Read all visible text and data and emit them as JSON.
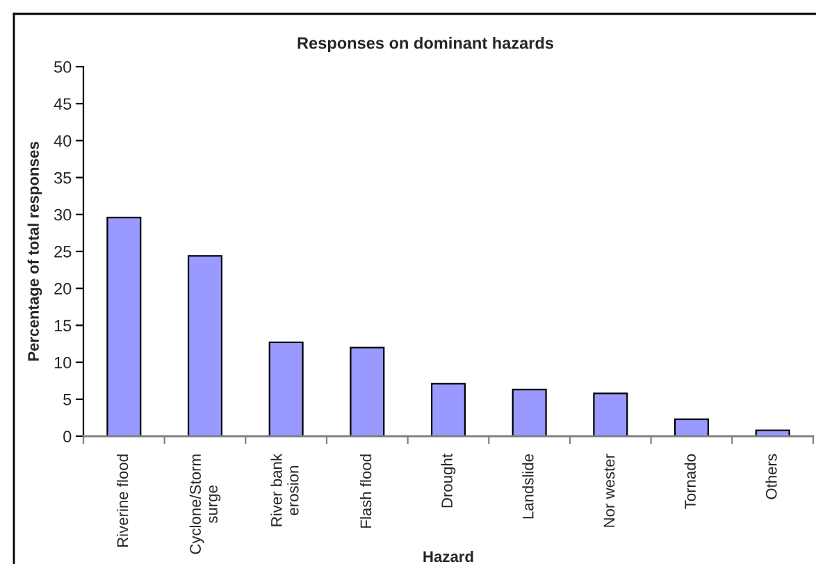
{
  "chart_data": {
    "type": "bar",
    "title": "Responses on dominant hazards",
    "xlabel": "Hazard",
    "ylabel": "Percentage of total responses",
    "categories": [
      "Riverine flood",
      "Cyclone/Storm\nsurge",
      "River bank\nerosion",
      "Flash flood",
      "Drought",
      "Landslide",
      "Nor wester",
      "Tornado",
      "Others"
    ],
    "values": [
      29.6,
      24.4,
      12.7,
      12.0,
      7.1,
      6.3,
      5.8,
      2.3,
      0.8
    ],
    "color": "#9999ff",
    "ylim": [
      0,
      50
    ],
    "yticks": [
      0,
      5,
      10,
      15,
      20,
      25,
      30,
      35,
      40,
      45,
      50
    ]
  }
}
